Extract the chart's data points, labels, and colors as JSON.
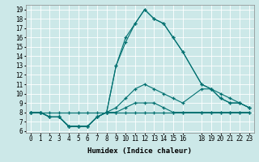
{
  "xlabel": "Humidex (Indice chaleur)",
  "bg_color": "#cce8e8",
  "grid_color": "#ffffff",
  "line_color": "#007070",
  "xlim": [
    -0.5,
    23.5
  ],
  "ylim": [
    5.8,
    19.5
  ],
  "xticks": [
    0,
    1,
    2,
    3,
    4,
    5,
    6,
    7,
    8,
    9,
    10,
    11,
    12,
    13,
    14,
    15,
    16,
    18,
    19,
    20,
    21,
    22,
    23
  ],
  "yticks": [
    6,
    7,
    8,
    9,
    10,
    11,
    12,
    13,
    14,
    15,
    16,
    17,
    18,
    19
  ],
  "lines": [
    {
      "x": [
        0,
        1,
        2,
        3,
        4,
        5,
        6,
        7,
        8,
        9,
        10,
        11,
        12,
        13,
        14,
        15,
        16,
        18,
        19,
        20,
        21,
        22,
        23
      ],
      "y": [
        8,
        8,
        8,
        8,
        8,
        8,
        8,
        8,
        8,
        8,
        8,
        8,
        8,
        8,
        8,
        8,
        8,
        8,
        8,
        8,
        8,
        8,
        8
      ]
    },
    {
      "x": [
        0,
        1,
        2,
        3,
        4,
        5,
        6,
        7,
        8,
        9,
        10,
        11,
        12,
        13,
        14,
        15,
        16,
        18,
        19,
        20,
        21,
        22,
        23
      ],
      "y": [
        8,
        8,
        7.5,
        7.5,
        6.5,
        6.5,
        6.5,
        7.5,
        8,
        8,
        8.5,
        9,
        9,
        9,
        8.5,
        8,
        8,
        8,
        8,
        8,
        8,
        8,
        8
      ]
    },
    {
      "x": [
        0,
        1,
        2,
        3,
        4,
        5,
        6,
        7,
        8,
        9,
        10,
        11,
        12,
        13,
        14,
        15,
        16,
        18,
        19,
        20,
        21,
        22,
        23
      ],
      "y": [
        8,
        8,
        7.5,
        7.5,
        6.5,
        6.5,
        6.5,
        7.5,
        8,
        8.5,
        9.5,
        10.5,
        11,
        10.5,
        10,
        9.5,
        9,
        10.5,
        10.5,
        10,
        9.5,
        9,
        8.5
      ]
    },
    {
      "x": [
        0,
        1,
        2,
        3,
        4,
        5,
        6,
        7,
        8,
        9,
        10,
        11,
        12,
        13,
        14,
        15,
        16,
        18,
        19,
        20,
        21,
        22,
        23
      ],
      "y": [
        8,
        8,
        7.5,
        7.5,
        6.5,
        6.5,
        6.5,
        7.5,
        8,
        13,
        15.5,
        17.5,
        19,
        18,
        17.5,
        16,
        14.5,
        11,
        10.5,
        9.5,
        9,
        9,
        8.5
      ]
    },
    {
      "x": [
        0,
        1,
        2,
        3,
        4,
        5,
        6,
        7,
        8,
        9,
        10,
        11,
        12,
        13,
        14,
        15,
        16,
        18,
        19,
        20,
        21,
        22,
        23
      ],
      "y": [
        8,
        8,
        7.5,
        7.5,
        6.5,
        6.5,
        6.5,
        7.5,
        8,
        13,
        16,
        17.5,
        19,
        18,
        17.5,
        16,
        14.5,
        11,
        10.5,
        9.5,
        9,
        9,
        8.5
      ]
    }
  ]
}
